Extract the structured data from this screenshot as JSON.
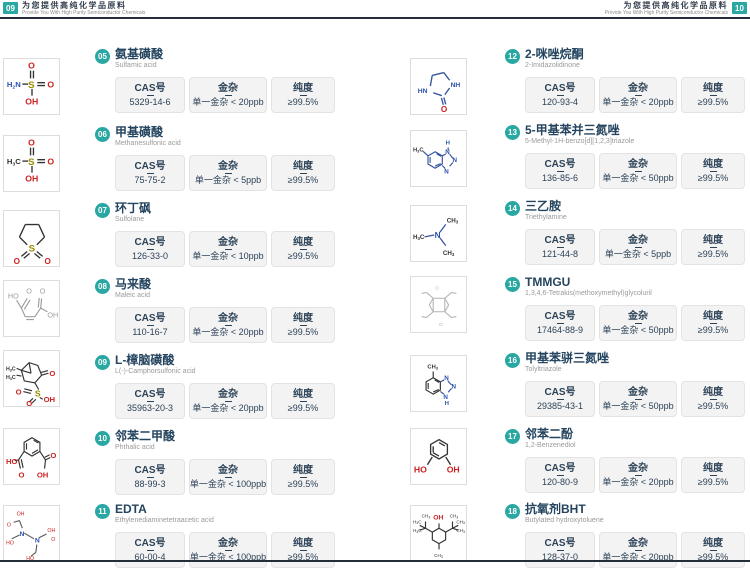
{
  "accent_color": "#29a7a2",
  "rule_color": "#242e3a",
  "header_left": {
    "page_no": "09",
    "title_zh": "为您提供高纯化学品原料",
    "title_en": "Provide You With High Purity Semiconductor Chemicals"
  },
  "header_right": {
    "page_no": "10",
    "title_zh": "为您提供高纯化学品原料",
    "title_en": "Provide You With High Purity Semiconductor Chemicals"
  },
  "labels": {
    "cas_label": "CAS号",
    "metal_label": "金杂",
    "purity_label": "纯度"
  },
  "columns": {
    "left": [
      {
        "no": "05",
        "name_zh": "氨基磺酸",
        "name_en": "Sulfamic acid",
        "cas": "5329-14-6",
        "metal": "单一金杂 < 20ppb",
        "purity": "≥99.5%",
        "structure": "sulfamic-acid"
      },
      {
        "no": "06",
        "name_zh": "甲基磺酸",
        "name_en": "Methanesulfonic acid",
        "cas": "75-75-2",
        "metal": "单一金杂 < 5ppb",
        "purity": "≥99.5%",
        "structure": "methanesulfonic-acid"
      },
      {
        "no": "07",
        "name_zh": "环丁砜",
        "name_en": "Sulfolane",
        "cas": "126-33-0",
        "metal": "单一金杂 < 10ppb",
        "purity": "≥99.5%",
        "structure": "sulfolane"
      },
      {
        "no": "08",
        "name_zh": "马来酸",
        "name_en": "Maleic acid",
        "cas": "110-16-7",
        "metal": "单一金杂 < 20ppb",
        "purity": "≥99.5%",
        "structure": "maleic-acid"
      },
      {
        "no": "09",
        "name_zh": "L-樟脑磺酸",
        "name_en": "L(-)-Camphorsulfonic acid",
        "cas": "35963-20-3",
        "metal": "单一金杂 < 20ppb",
        "purity": "≥99.5%",
        "structure": "camphorsulfonic-acid"
      },
      {
        "no": "10",
        "name_zh": "邻苯二甲酸",
        "name_en": "Phthalic acid",
        "cas": "88-99-3",
        "metal": "单一金杂 < 100ppb",
        "purity": "≥99.5%",
        "structure": "phthalic-acid"
      },
      {
        "no": "11",
        "name_zh": "EDTA",
        "name_en": "Ethylenediaminetetraacetic acid",
        "cas": "60-00-4",
        "metal": "单一金杂 < 100ppb",
        "purity": "≥99.5%",
        "structure": "edta"
      }
    ],
    "right": [
      {
        "no": "12",
        "name_zh": "2-咪唑烷酮",
        "name_en": "2-Imidazolidinone",
        "cas": "120-93-4",
        "metal": "单一金杂 < 20ppb",
        "purity": "≥99.5%",
        "structure": "imidazolidinone"
      },
      {
        "no": "13",
        "name_zh": "5-甲基苯并三氮唑",
        "name_en": "5-Methyl-1H-benzo[d][1,2,3]triazole",
        "cas": "136-85-6",
        "metal": "单一金杂 < 50ppb",
        "purity": "≥99.5%",
        "structure": "methylbenzotriazole"
      },
      {
        "no": "14",
        "name_zh": "三乙胺",
        "name_en": "Triethylamine",
        "cas": "121-44-8",
        "metal": "单一金杂 < 5ppb",
        "purity": "≥99.5%",
        "structure": "triethylamine"
      },
      {
        "no": "15",
        "name_zh": "TMMGU",
        "name_en": "1,3,4,6-Tetrakis(methoxymethyl)glycoluril",
        "cas": "17464-88-9",
        "metal": "单一金杂 < 50ppb",
        "purity": "≥99.5%",
        "structure": "tmmgu"
      },
      {
        "no": "16",
        "name_zh": "甲基苯骈三氮唑",
        "name_en": "Tolyltriazole",
        "cas": "29385-43-1",
        "metal": "单一金杂 < 50ppb",
        "purity": "≥99.5%",
        "structure": "tolyltriazole"
      },
      {
        "no": "17",
        "name_zh": "邻苯二酚",
        "name_en": "1,2-Benzenediol",
        "cas": "120-80-9",
        "metal": "单一金杂 < 20ppb",
        "purity": "≥99.5%",
        "structure": "benzenediol"
      },
      {
        "no": "18",
        "name_zh": "抗氧剂BHT",
        "name_en": "Butylated hydroxytoluene",
        "cas": "128-37-0",
        "metal": "单一金杂 < 20ppb",
        "purity": "≥99.5%",
        "structure": "bht"
      }
    ]
  }
}
